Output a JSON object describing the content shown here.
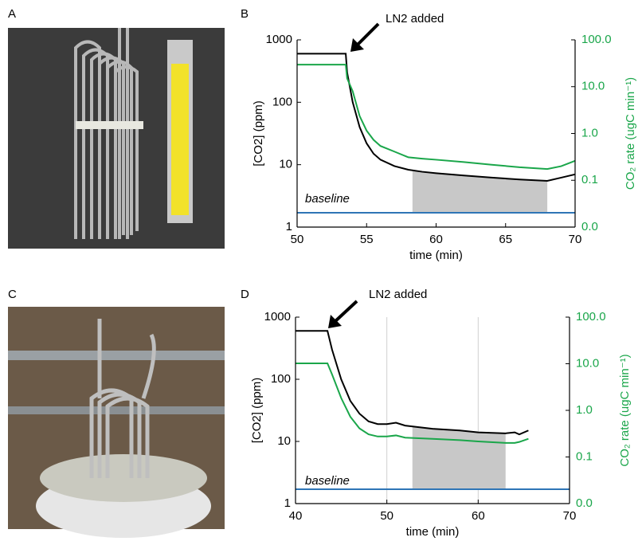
{
  "panel_labels": [
    "A",
    "B",
    "C",
    "D"
  ],
  "chart_data": [
    {
      "type": "line",
      "x_label": "time (min)",
      "y_label": "[CO2] (ppm)",
      "y2_label": "CO₂ rate (ugC min⁻¹)",
      "annotations": [
        "LN2 added",
        "baseline"
      ],
      "x": [
        50,
        51,
        52,
        53,
        53.5,
        53.6,
        54,
        54.5,
        55,
        55.5,
        56,
        57,
        58,
        59,
        60,
        62,
        64,
        66,
        68,
        69,
        70
      ],
      "series": [
        {
          "color": "#000000",
          "values": [
            600,
            600,
            600,
            600,
            600,
            300,
            100,
            40,
            22,
            15,
            12,
            9.5,
            8.3,
            7.7,
            7.3,
            6.7,
            6.2,
            5.8,
            5.5,
            6.2,
            7
          ]
        },
        {
          "color": "#1aa64a",
          "axis": "y2",
          "values": [
            29.5,
            29.5,
            29.5,
            29.5,
            29.5,
            15,
            7.97,
            2.35,
            1.15,
            0.73,
            0.54,
            0.41,
            0.31,
            0.29,
            0.275,
            0.245,
            0.215,
            0.19,
            0.174,
            0.2,
            0.26
          ]
        },
        {
          "color": "#2e75b6",
          "values": [
            1.7,
            1.7,
            1.7,
            1.7,
            1.7,
            1.7,
            1.7,
            1.7,
            1.7,
            1.7,
            1.7,
            1.7,
            1.7,
            1.7,
            1.7,
            1.7,
            1.7,
            1.7,
            1.7,
            1.7,
            1.7
          ]
        }
      ],
      "shaded_x": [
        58.3,
        68
      ],
      "shade_color": "#c8c8c8",
      "xlim": [
        50,
        70
      ],
      "xticks": [
        50,
        55,
        60,
        65,
        70
      ],
      "ylim": [
        1,
        1000
      ],
      "yticks": [
        1,
        10,
        100,
        1000
      ],
      "log_y": true,
      "y2lim": [
        0.01,
        100
      ],
      "y2ticks": [
        {
          "value": 0.01,
          "label": "0.0"
        },
        0.1,
        {
          "value": 1,
          "label": "1.0"
        },
        {
          "value": 10,
          "label": "10.0"
        },
        {
          "value": 100,
          "label": "100.0"
        }
      ],
      "y2_color": "#1aa64a",
      "grid": false
    },
    {
      "type": "line",
      "x_label": "time (min)",
      "y_label": "[CO2] (ppm)",
      "y2_label": "CO₂ rate (ugC min⁻¹)",
      "annotations": [
        "LN2 added",
        "baseline"
      ],
      "x": [
        40,
        42,
        43,
        43.5,
        44,
        45,
        46,
        47,
        48,
        49,
        50,
        51,
        52,
        55,
        58,
        60,
        63,
        64,
        64.5,
        65.5,
        70
      ],
      "series": [
        {
          "color": "#000000",
          "values": [
            600,
            600,
            600,
            600,
            300,
            100,
            45,
            28,
            21,
            19,
            19,
            20,
            18,
            16,
            15,
            14,
            13.5,
            14,
            13,
            15,
            null
          ]
        },
        {
          "color": "#1aa64a",
          "axis": "y2",
          "values": [
            10.2,
            10.2,
            10.2,
            10.2,
            5.9,
            1.84,
            0.73,
            0.41,
            0.306,
            0.275,
            0.275,
            0.29,
            0.26,
            0.245,
            0.23,
            0.215,
            0.2,
            0.2,
            0.21,
            0.245,
            null
          ]
        },
        {
          "color": "#2e75b6",
          "values": [
            1.7,
            1.7,
            1.7,
            1.7,
            1.7,
            1.7,
            1.7,
            1.7,
            1.7,
            1.7,
            1.7,
            1.7,
            1.7,
            1.7,
            1.7,
            1.7,
            1.7,
            1.7,
            1.7,
            1.7,
            1.7
          ]
        }
      ],
      "shaded_x": [
        52.8,
        63
      ],
      "shade_color": "#c8c8c8",
      "xlim": [
        40,
        70
      ],
      "xticks": [
        40,
        50,
        60,
        70
      ],
      "ylim": [
        1,
        1000
      ],
      "yticks": [
        1,
        10,
        100,
        1000
      ],
      "log_y": true,
      "y2lim": [
        0.01,
        100
      ],
      "y2ticks": [
        {
          "value": 0.01,
          "label": "0.0"
        },
        0.1,
        {
          "value": 1,
          "label": "1.0"
        },
        {
          "value": 10,
          "label": "10.0"
        },
        {
          "value": 100,
          "label": "100.0"
        }
      ],
      "y2_color": "#1aa64a",
      "grid": true
    }
  ]
}
